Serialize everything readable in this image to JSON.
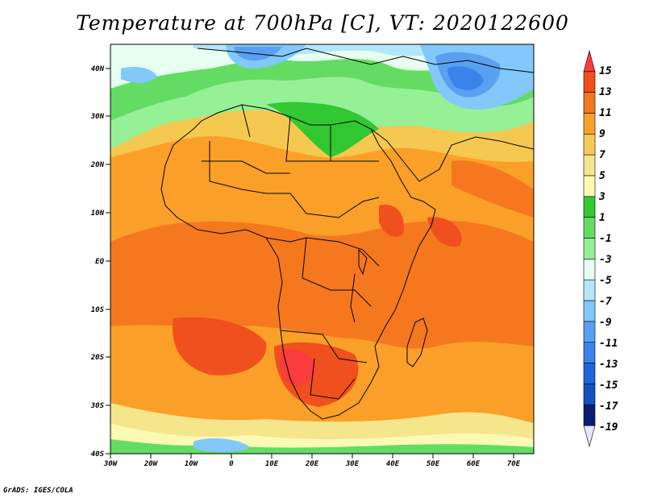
{
  "title": "Temperature at 700hPa [C], VT: 2020122600",
  "footer": "GrADS: IGES/COLA",
  "map": {
    "projection": "latlon",
    "lon_range": [
      -30,
      75
    ],
    "lat_range": [
      -40,
      45
    ],
    "lat_ticks": [
      "40N",
      "30N",
      "20N",
      "10N",
      "EQ",
      "10S",
      "20S",
      "30S",
      "40S"
    ],
    "lon_ticks": [
      "30W",
      "20W",
      "10W",
      "0",
      "10E",
      "20E",
      "30E",
      "40E",
      "50E",
      "60E",
      "70E"
    ],
    "field": "temperature_700hPa",
    "units": "C"
  },
  "colorbar": {
    "levels": [
      "15",
      "13",
      "11",
      "9",
      "7",
      "5",
      "3",
      "1",
      "-1",
      "-3",
      "-5",
      "-7",
      "-9",
      "-11",
      "-13",
      "-15",
      "-17",
      "-19"
    ],
    "colors": [
      "#fa3c3c",
      "#f0501e",
      "#f5781e",
      "#faa028",
      "#fac85a",
      "#f5e68c",
      "#fafab4",
      "#32c832",
      "#64dc64",
      "#96f096",
      "#e6fff0",
      "#b4e6fa",
      "#82c8fa",
      "#5aa0f0",
      "#3c82eb",
      "#1e64dc",
      "#1450c3",
      "#0a1e78",
      "#e6e6fa"
    ]
  }
}
